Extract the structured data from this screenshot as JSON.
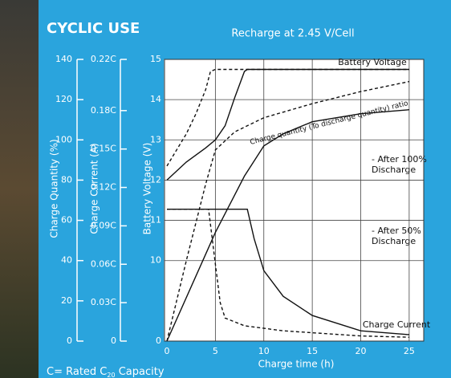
{
  "chart_data": {
    "type": "line",
    "title": "CYCLIC USE",
    "subtitle": "Recharge at 2.45 V/Cell",
    "x_label": "Charge time (h)",
    "y_label": "Charge Quantity (%)",
    "y2_label": "Charge Current (A)",
    "y3_label": "Battery Voltage (V)",
    "xlim": [
      0,
      26.5
    ],
    "xticks": [
      0,
      5,
      10,
      15,
      20,
      25
    ],
    "ylim": [
      0,
      140
    ],
    "yticks": [
      0,
      20,
      40,
      60,
      80,
      100,
      120,
      140
    ],
    "y2lim": [
      0,
      0.22
    ],
    "y2ticks": [
      {
        "value": 0,
        "label": "0"
      },
      {
        "value": 0.03,
        "label": "0.03C"
      },
      {
        "value": 0.06,
        "label": "0.06C"
      },
      {
        "value": 0.09,
        "label": "0.09C"
      },
      {
        "value": 0.12,
        "label": "0.12C"
      },
      {
        "value": 0.15,
        "label": "0.15C"
      },
      {
        "value": 0.18,
        "label": "0.18C"
      },
      {
        "value": 0.22,
        "label": "0.22C"
      }
    ],
    "y3lim": [
      0,
      15
    ],
    "y3_break": [
      0,
      8
    ],
    "y3ticks": [
      0,
      10,
      11,
      12,
      13,
      14,
      15
    ],
    "grid": true,
    "series": [
      {
        "axis": "y3",
        "style": "solid",
        "color": "#111",
        "x": [
          0,
          2,
          4,
          5,
          6,
          7,
          8,
          8.3,
          25
        ],
        "values": [
          12.0,
          12.45,
          12.8,
          13.0,
          13.35,
          14.05,
          14.7,
          14.75,
          14.75
        ]
      },
      {
        "axis": "y3",
        "style": "dashed",
        "color": "#111",
        "x": [
          0,
          1,
          2,
          3,
          4,
          4.5,
          5,
          25
        ],
        "values": [
          12.35,
          12.75,
          13.15,
          13.65,
          14.25,
          14.7,
          14.75,
          14.75
        ]
      },
      {
        "axis": "y",
        "style": "solid",
        "color": "#111",
        "x": [
          0,
          5,
          8,
          10,
          12,
          15,
          20,
          25
        ],
        "values": [
          0,
          54,
          82,
          97,
          103,
          109,
          113,
          115
        ]
      },
      {
        "axis": "y",
        "style": "dashed",
        "color": "#111",
        "x": [
          0,
          2,
          4,
          5,
          7,
          10,
          15,
          20,
          25
        ],
        "values": [
          0,
          40,
          78,
          95,
          104,
          111,
          118,
          124,
          129
        ]
      },
      {
        "axis": "y2",
        "style": "solid",
        "color": "#111",
        "x": [
          0,
          8.3,
          9,
          10,
          12,
          15,
          20,
          25
        ],
        "values": [
          0.103,
          0.103,
          0.08,
          0.055,
          0.035,
          0.02,
          0.008,
          0.005
        ]
      },
      {
        "axis": "y2",
        "style": "dashed",
        "color": "#111",
        "x": [
          0,
          4.3,
          5,
          5.5,
          6,
          8,
          12,
          20,
          25
        ],
        "values": [
          0.103,
          0.103,
          0.06,
          0.03,
          0.018,
          0.012,
          0.008,
          0.004,
          0.003
        ]
      }
    ],
    "annotations": [
      "Battery Voltage",
      "Charge quantity (To discharge quantity) ratio",
      "- After 100%",
      "Discharge",
      "- After 50%",
      "Discharge",
      "Charge Current"
    ],
    "footnote": [
      "C= Rated C",
      "20",
      " Capacity"
    ]
  }
}
